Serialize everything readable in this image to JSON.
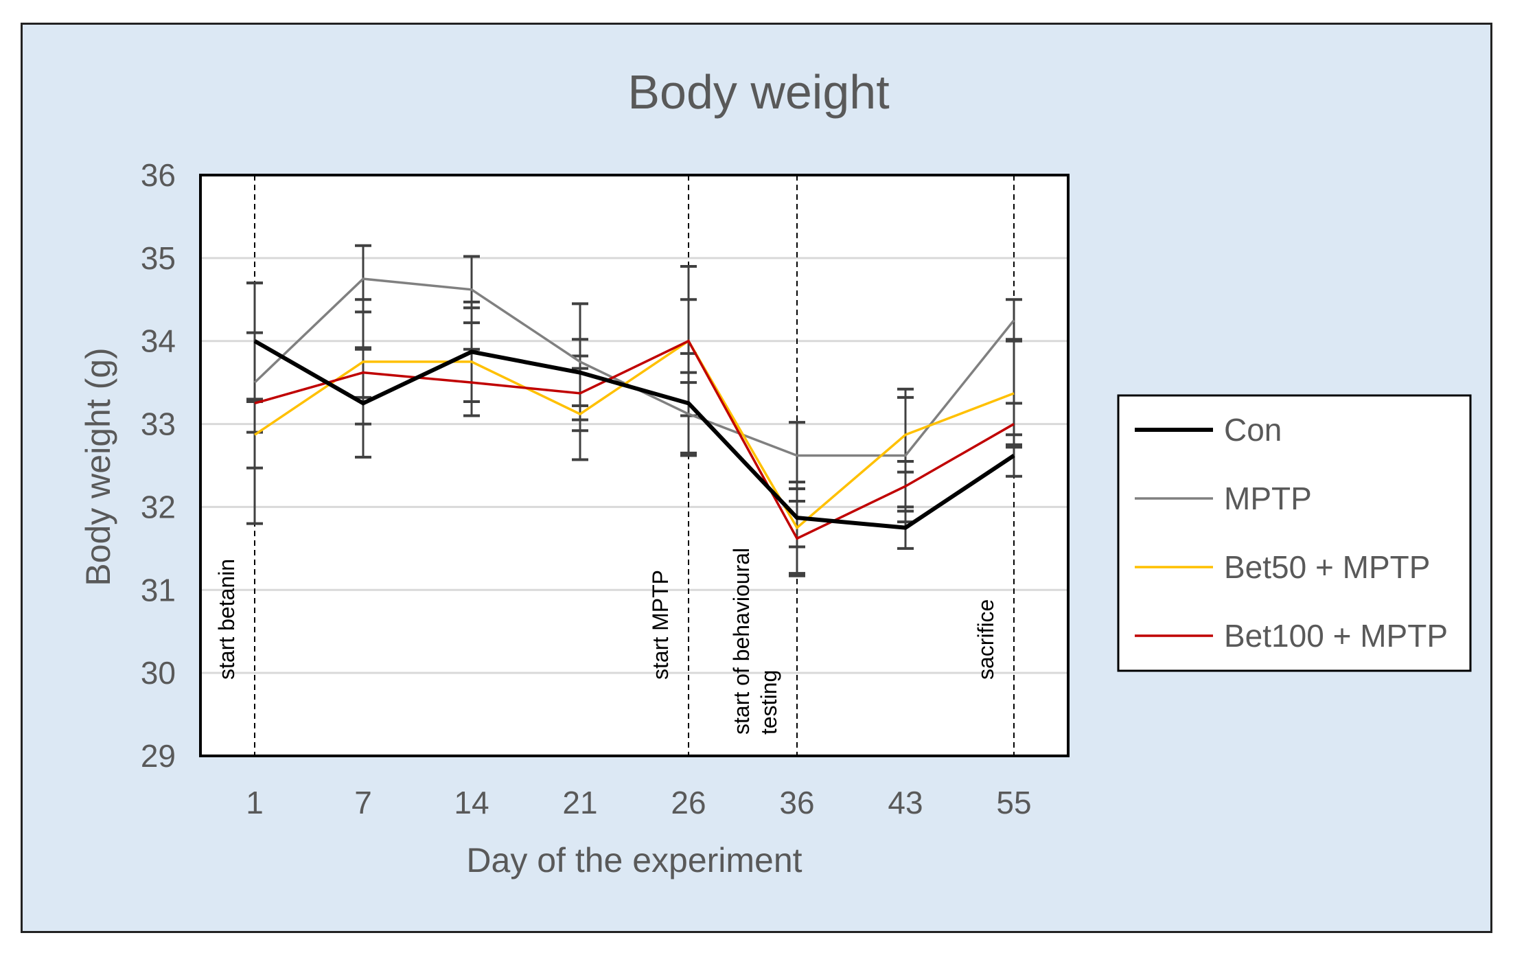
{
  "chart_data": {
    "type": "line",
    "title": "Body weight",
    "xlabel": "Day of the experiment",
    "ylabel": "Body weight (g)",
    "categories": [
      "1",
      "7",
      "14",
      "21",
      "26",
      "36",
      "43",
      "55"
    ],
    "ylim": [
      29,
      36
    ],
    "yticks": [
      "29",
      "30",
      "31",
      "32",
      "33",
      "34",
      "35",
      "36"
    ],
    "grid": true,
    "legend_position": "right",
    "series": [
      {
        "name": "Con",
        "color": "#000000",
        "values": [
          34.0,
          33.25,
          33.87,
          33.62,
          33.25,
          31.87,
          31.75,
          32.62
        ],
        "errors": [
          0.7,
          0.65,
          0.6,
          0.4,
          0.6,
          0.35,
          0.25,
          0.25
        ]
      },
      {
        "name": "MPTP",
        "color": "#808080",
        "values": [
          33.5,
          34.75,
          34.62,
          33.75,
          33.12,
          32.62,
          32.62,
          34.25
        ],
        "errors": [
          0.6,
          0.4,
          0.4,
          0.7,
          0.5,
          0.4,
          0.8,
          0.25
        ]
      },
      {
        "name": "Bet50 + MPTP",
        "color": "#ffc000",
        "values": [
          32.87,
          33.75,
          33.75,
          33.12,
          34.0,
          31.75,
          32.87,
          33.37
        ],
        "errors": [
          0.4,
          0.75,
          0.65,
          0.55,
          0.5,
          0.55,
          0.45,
          0.65
        ]
      },
      {
        "name": "Bet100 + MPTP",
        "color": "#c00000",
        "values": [
          33.25,
          33.62,
          33.5,
          33.37,
          34.0,
          31.62,
          32.25,
          33.0
        ],
        "errors": [
          1.45,
          0.3,
          0.4,
          0.45,
          0.9,
          0.45,
          0.3,
          0.25
        ]
      }
    ],
    "annotations": [
      {
        "at": "1",
        "text": "start betanin"
      },
      {
        "at": "26",
        "text": "start MPTP"
      },
      {
        "at": "36",
        "text": "start of behavioural testing"
      },
      {
        "at": "55",
        "text": "sacrifice"
      }
    ]
  }
}
